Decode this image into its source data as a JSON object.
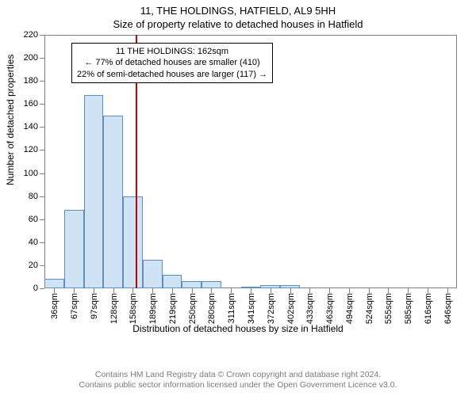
{
  "title_main": "11, THE HOLDINGS, HATFIELD, AL9 5HH",
  "title_sub": "Size of property relative to detached houses in Hatfield",
  "ylabel": "Number of detached properties",
  "xlabel": "Distribution of detached houses by size in Hatfield",
  "copyright_line1": "Contains HM Land Registry data © Crown copyright and database right 2024.",
  "copyright_line2": "Contains public sector information licensed under the Open Government Licence v3.0.",
  "chart": {
    "type": "histogram",
    "ylim": [
      0,
      220
    ],
    "ytick_step": 20,
    "x_categories": [
      "36sqm",
      "67sqm",
      "97sqm",
      "128sqm",
      "158sqm",
      "189sqm",
      "219sqm",
      "250sqm",
      "280sqm",
      "311sqm",
      "341sqm",
      "372sqm",
      "402sqm",
      "433sqm",
      "463sqm",
      "494sqm",
      "524sqm",
      "555sqm",
      "585sqm",
      "616sqm",
      "646sqm"
    ],
    "values": [
      8,
      68,
      168,
      150,
      80,
      25,
      12,
      6,
      6,
      0,
      1,
      3,
      3,
      0,
      0,
      0,
      0,
      0,
      0,
      0,
      0
    ],
    "bar_fill": "#cfe3f5",
    "bar_stroke": "#5a8fc0",
    "axis_color": "#808080",
    "marker_value_sqm": 162,
    "marker_color": "#cc0000",
    "background_color": "#ffffff",
    "title_fontsize": 13,
    "label_fontsize": 12,
    "tick_fontsize": 11
  },
  "annotation": {
    "line1": "11 THE HOLDINGS: 162sqm",
    "line2": "← 77% of detached houses are smaller (410)",
    "line3": "22% of semi-detached houses are larger (117) →"
  }
}
